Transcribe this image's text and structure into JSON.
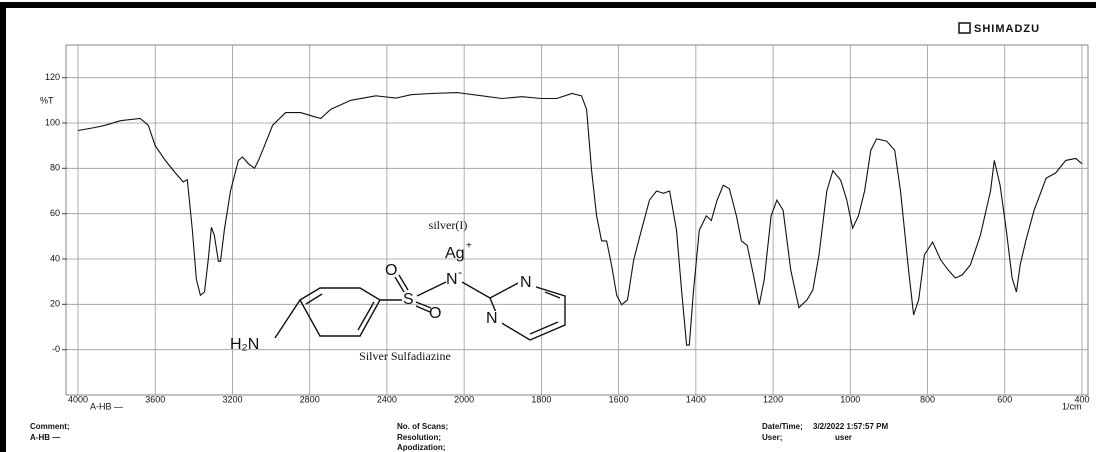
{
  "chart_data": {
    "type": "line",
    "brand": "SHIMADZU",
    "ylabel": "%T",
    "sample_label": "A-HB —",
    "xlabel": "1/cm",
    "x": [
      4000,
      3912,
      3860,
      3780,
      3678,
      3636,
      3600,
      3548,
      3496,
      3455,
      3434,
      3408,
      3387,
      3366,
      3345,
      3325,
      3309,
      3294,
      3273,
      3262,
      3242,
      3210,
      3169,
      3148,
      3117,
      3086,
      3065,
      3034,
      2992,
      2925,
      2847,
      2784,
      2743,
      2691,
      2587,
      2457,
      2353,
      2275,
      2171,
      2036,
      2000,
      1954,
      1902,
      1850,
      1800,
      1760,
      1721,
      1696,
      1683,
      1670,
      1657,
      1644,
      1631,
      1618,
      1605,
      1592,
      1577,
      1561,
      1541,
      1520,
      1502,
      1484,
      1468,
      1450,
      1437,
      1424,
      1417,
      1406,
      1391,
      1373,
      1360,
      1345,
      1329,
      1313,
      1295,
      1282,
      1267,
      1251,
      1236,
      1223,
      1205,
      1190,
      1174,
      1154,
      1133,
      1112,
      1097,
      1081,
      1061,
      1045,
      1025,
      1009,
      994,
      979,
      963,
      947,
      932,
      906,
      885,
      870,
      849,
      836,
      823,
      808,
      787,
      766,
      746,
      728,
      710,
      689,
      663,
      637,
      627,
      612,
      596,
      581,
      570,
      560,
      545,
      524,
      493,
      468,
      442,
      416,
      400
    ],
    "values": [
      96.7,
      98,
      99,
      101,
      102,
      99,
      90,
      83.5,
      78,
      74,
      75,
      53,
      31,
      24,
      25.5,
      40,
      54,
      50.5,
      39,
      39,
      53,
      70,
      83.5,
      85,
      82,
      80,
      83.5,
      90,
      99,
      104.6,
      104.6,
      103,
      102,
      106,
      110,
      112,
      111,
      112.5,
      113,
      113.4,
      113,
      112,
      110.8,
      111.6,
      110.8,
      110.8,
      113,
      112,
      106,
      79,
      59,
      48,
      48,
      37,
      24,
      19.8,
      22,
      39.6,
      52.7,
      66,
      70,
      69,
      70,
      52.7,
      26,
      2,
      2,
      26,
      52.7,
      59,
      57,
      66,
      72.5,
      71,
      59,
      48,
      46,
      33,
      19.8,
      30.8,
      59,
      66,
      61.5,
      35,
      18.5,
      22,
      26.4,
      41.8,
      70,
      79,
      74.7,
      66,
      53.6,
      59,
      70,
      88,
      93,
      92,
      88,
      70,
      35,
      15.4,
      22,
      41.8,
      47.5,
      39.6,
      35,
      31.6,
      33,
      37.4,
      50.5,
      70,
      83.5,
      72.5,
      52.7,
      31.6,
      25.5,
      37.4,
      48.4,
      61.5,
      75.6,
      78,
      83.5,
      84.4,
      82
    ],
    "color": "#111111",
    "xlim": [
      4000,
      400
    ],
    "xticks": [
      4000,
      3600,
      3200,
      2800,
      2400,
      2000,
      1800,
      1600,
      1400,
      1200,
      1000,
      800,
      600,
      400
    ],
    "ylim": [
      -20,
      130
    ],
    "yticks": [
      {
        "value": 0,
        "label": "-0"
      },
      20,
      40,
      60,
      80,
      100,
      120
    ],
    "grid": true
  },
  "structure": {
    "name": "Silver Sulfadiazine",
    "ion_name": "silver(I)",
    "ion": "Ag",
    "ion_charge": "+",
    "amine": "H₂N",
    "sulfur": "S",
    "oxygen_top": "O",
    "oxygen_bottom": "O",
    "nitrogen_anion": "N",
    "anion_charge": "-",
    "ring_n_top": "N",
    "ring_n_bottom": "N"
  },
  "footer": {
    "comment_label": "Comment;",
    "comment": "A-HB —",
    "scans_label": "No. of Scans;",
    "resolution_label": "Resolution;",
    "apodization_label": "Apodization;",
    "datetime_label": "Date/Time;",
    "datetime": "3/2/2022 1:57:57 PM",
    "user_label": "User;",
    "user": "user"
  }
}
